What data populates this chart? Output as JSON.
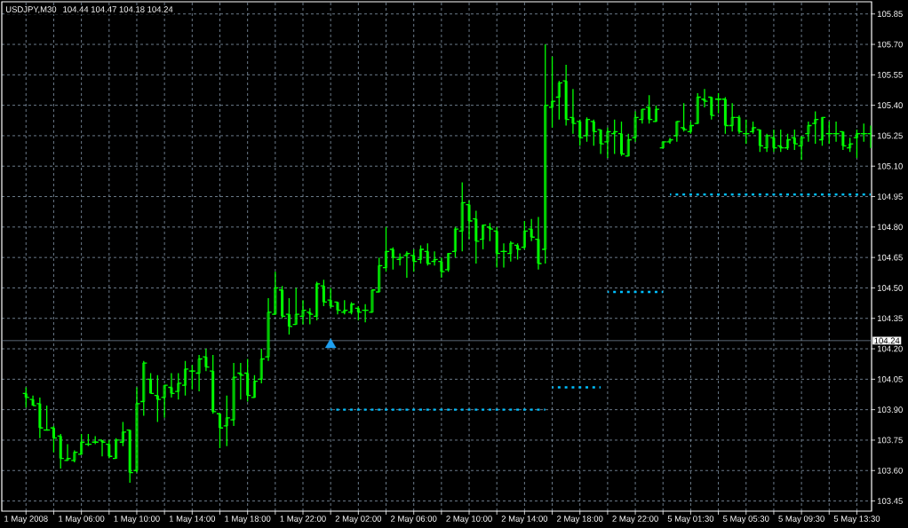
{
  "chart_data": {
    "type": "candlestick",
    "title": "USDJPY,M30",
    "subtitle": "104.44 104.47 104.18 104.24",
    "categories": [
      "1 May 2008",
      null,
      null,
      null,
      null,
      null,
      null,
      null,
      "1 May 06:00",
      null,
      null,
      null,
      null,
      null,
      null,
      null,
      "1 May 10:00",
      null,
      null,
      null,
      null,
      null,
      null,
      null,
      "1 May 14:00",
      null,
      null,
      null,
      null,
      null,
      null,
      null,
      "1 May 18:00",
      null,
      null,
      null,
      null,
      null,
      null,
      null,
      "1 May 22:00",
      null,
      null,
      null,
      null,
      null,
      null,
      null,
      "2 May 02:00",
      null,
      null,
      null,
      null,
      null,
      null,
      null,
      "2 May 06:00",
      null,
      null,
      null,
      null,
      null,
      null,
      null,
      "2 May 10:00",
      null,
      null,
      null,
      null,
      null,
      null,
      null,
      "2 May 14:00",
      null,
      null,
      null,
      null,
      null,
      null,
      null,
      "2 May 18:00",
      null,
      null,
      null,
      null,
      null,
      null,
      null,
      "2 May 22:00",
      null,
      null,
      null,
      null,
      null,
      null,
      null,
      "5 May 01:30",
      null,
      null,
      null,
      null,
      null,
      null,
      null,
      "5 May 05:30",
      null,
      null,
      null,
      null,
      null,
      null,
      null,
      "5 May 09:30",
      null,
      null,
      null,
      null,
      null,
      null,
      null,
      "5 May 13:30",
      null,
      null
    ],
    "ohlc": [
      [
        103.98,
        104.01,
        103.91,
        103.96
      ],
      [
        103.95,
        103.97,
        103.92,
        103.92
      ],
      [
        103.93,
        103.96,
        103.76,
        103.81
      ],
      [
        103.8,
        103.92,
        103.8,
        103.8
      ],
      [
        103.81,
        103.82,
        103.69,
        103.76
      ],
      [
        103.77,
        103.78,
        103.61,
        103.66
      ],
      [
        103.65,
        103.73,
        103.65,
        103.66
      ],
      [
        103.65,
        103.7,
        103.64,
        103.69
      ],
      [
        103.68,
        103.78,
        103.68,
        103.74
      ],
      [
        103.73,
        103.78,
        103.72,
        103.73
      ],
      [
        103.74,
        103.77,
        103.73,
        103.74
      ],
      [
        103.75,
        103.75,
        103.67,
        103.74
      ],
      [
        103.73,
        103.75,
        103.66,
        103.67
      ],
      [
        103.66,
        103.76,
        103.66,
        103.75
      ],
      [
        103.74,
        103.84,
        103.72,
        103.79
      ],
      [
        103.8,
        103.8,
        103.54,
        103.59
      ],
      [
        103.6,
        104.01,
        103.59,
        103.93
      ],
      [
        103.94,
        104.14,
        103.87,
        104.13
      ],
      [
        104.05,
        104.08,
        103.98,
        103.98
      ],
      [
        103.97,
        104.07,
        103.84,
        103.95
      ],
      [
        103.96,
        104.02,
        103.86,
        104.02
      ],
      [
        104.01,
        104.08,
        103.96,
        103.98
      ],
      [
        103.99,
        104.08,
        103.95,
        104.03
      ],
      [
        104.02,
        104.14,
        103.97,
        104.1
      ],
      [
        104.09,
        104.12,
        104.0,
        104.09
      ],
      [
        104.08,
        104.17,
        103.99,
        104.15
      ],
      [
        104.16,
        104.2,
        104.09,
        104.11
      ],
      [
        104.09,
        104.17,
        103.88,
        103.89
      ],
      [
        103.88,
        103.88,
        103.71,
        103.81
      ],
      [
        103.82,
        103.97,
        103.72,
        103.86
      ],
      [
        103.85,
        104.13,
        103.82,
        104.06
      ],
      [
        104.08,
        104.13,
        103.95,
        104.07
      ],
      [
        104.08,
        104.15,
        103.94,
        103.97
      ],
      [
        103.96,
        104.07,
        103.96,
        104.04
      ],
      [
        104.05,
        104.2,
        104.03,
        104.15
      ],
      [
        104.16,
        104.45,
        104.14,
        104.38
      ],
      [
        104.37,
        104.58,
        104.37,
        104.5
      ],
      [
        104.49,
        104.51,
        104.35,
        104.36
      ],
      [
        104.37,
        104.45,
        104.27,
        104.31
      ],
      [
        104.32,
        104.5,
        104.32,
        104.37
      ],
      [
        104.36,
        104.44,
        104.32,
        104.39
      ],
      [
        104.38,
        104.4,
        104.32,
        104.37
      ],
      [
        104.36,
        104.53,
        104.34,
        104.52
      ],
      [
        104.51,
        104.54,
        104.41,
        104.43
      ],
      [
        104.44,
        104.5,
        104.4,
        104.41
      ],
      [
        104.43,
        104.43,
        104.37,
        104.39
      ],
      [
        104.38,
        104.44,
        104.37,
        104.39
      ],
      [
        104.38,
        104.43,
        104.37,
        104.42
      ],
      [
        104.4,
        104.41,
        104.34,
        104.38
      ],
      [
        104.39,
        104.42,
        104.33,
        104.39
      ],
      [
        104.38,
        104.49,
        104.38,
        104.49
      ],
      [
        104.48,
        104.65,
        104.48,
        104.61
      ],
      [
        104.6,
        104.8,
        104.58,
        104.68
      ],
      [
        104.69,
        104.7,
        104.59,
        104.65
      ],
      [
        104.64,
        104.67,
        104.61,
        104.65
      ],
      [
        104.66,
        104.68,
        104.55,
        104.67
      ],
      [
        104.66,
        104.69,
        104.58,
        104.63
      ],
      [
        104.64,
        104.71,
        104.62,
        104.69
      ],
      [
        104.68,
        104.72,
        104.61,
        104.62
      ],
      [
        104.63,
        104.68,
        104.61,
        104.64
      ],
      [
        104.63,
        104.65,
        104.55,
        104.58
      ],
      [
        104.59,
        104.67,
        104.58,
        104.67
      ],
      [
        104.68,
        104.8,
        104.65,
        104.79
      ],
      [
        104.78,
        105.02,
        104.68,
        104.92
      ],
      [
        104.91,
        104.93,
        104.74,
        104.83
      ],
      [
        104.84,
        104.88,
        104.62,
        104.73
      ],
      [
        104.74,
        104.81,
        104.69,
        104.81
      ],
      [
        104.8,
        104.82,
        104.73,
        104.79
      ],
      [
        104.78,
        104.8,
        104.6,
        104.67
      ],
      [
        104.68,
        104.72,
        104.6,
        104.68
      ],
      [
        104.67,
        104.73,
        104.63,
        104.72
      ],
      [
        104.71,
        104.72,
        104.64,
        104.69
      ],
      [
        104.7,
        104.83,
        104.69,
        104.78
      ],
      [
        104.79,
        104.84,
        104.73,
        104.75
      ],
      [
        104.74,
        104.85,
        104.59,
        104.62
      ],
      [
        104.69,
        105.7,
        104.62,
        105.4
      ],
      [
        105.39,
        105.64,
        105.29,
        105.42
      ],
      [
        105.44,
        105.52,
        105.33,
        105.51
      ],
      [
        105.52,
        105.6,
        105.3,
        105.33
      ],
      [
        105.34,
        105.48,
        105.26,
        105.31
      ],
      [
        105.32,
        105.33,
        105.2,
        105.24
      ],
      [
        105.25,
        105.34,
        105.22,
        105.33
      ],
      [
        105.32,
        105.33,
        105.2,
        105.27
      ],
      [
        105.28,
        105.28,
        105.16,
        105.21
      ],
      [
        105.22,
        105.29,
        105.14,
        105.27
      ],
      [
        105.26,
        105.33,
        105.16,
        105.27
      ],
      [
        105.26,
        105.32,
        105.15,
        105.16
      ],
      [
        105.15,
        105.26,
        105.15,
        105.23
      ],
      [
        105.24,
        105.37,
        105.22,
        105.34
      ],
      [
        105.33,
        105.38,
        105.31,
        105.38
      ],
      [
        105.39,
        105.45,
        105.31,
        105.33
      ],
      [
        105.32,
        105.4,
        105.32,
        105.38
      ],
      [
        105.19,
        105.22,
        105.19,
        105.22
      ],
      [
        105.22,
        105.24,
        105.21,
        105.23
      ],
      [
        105.25,
        105.32,
        105.22,
        105.32
      ],
      [
        105.29,
        105.41,
        105.27,
        105.28
      ],
      [
        105.27,
        105.32,
        105.26,
        105.3
      ],
      [
        105.31,
        105.46,
        105.31,
        105.44
      ],
      [
        105.43,
        105.48,
        105.39,
        105.42
      ],
      [
        105.44,
        105.44,
        105.33,
        105.35
      ],
      [
        105.43,
        105.46,
        105.36,
        105.43
      ],
      [
        105.43,
        105.44,
        105.26,
        105.3
      ],
      [
        105.3,
        105.41,
        105.27,
        105.34
      ],
      [
        105.34,
        105.35,
        105.26,
        105.27
      ],
      [
        105.26,
        105.33,
        105.21,
        105.26
      ],
      [
        105.27,
        105.32,
        105.26,
        105.29
      ],
      [
        105.28,
        105.28,
        105.17,
        105.2
      ],
      [
        105.19,
        105.26,
        105.17,
        105.25
      ],
      [
        105.24,
        105.28,
        105.17,
        105.19
      ],
      [
        105.2,
        105.28,
        105.17,
        105.19
      ],
      [
        105.19,
        105.26,
        105.18,
        105.23
      ],
      [
        105.24,
        105.28,
        105.18,
        105.21
      ],
      [
        105.2,
        105.25,
        105.13,
        105.24
      ],
      [
        105.26,
        105.32,
        105.22,
        105.3
      ],
      [
        105.31,
        105.37,
        105.21,
        105.33
      ],
      [
        105.23,
        105.34,
        105.2,
        105.34
      ],
      [
        105.26,
        105.32,
        105.21,
        105.26
      ],
      [
        105.26,
        105.32,
        105.22,
        105.26
      ],
      [
        105.27,
        105.27,
        105.18,
        105.2
      ],
      [
        105.19,
        105.24,
        105.17,
        105.21
      ],
      [
        105.24,
        105.28,
        105.14,
        105.26
      ],
      [
        105.26,
        105.31,
        105.22,
        105.26
      ],
      [
        105.26,
        105.3,
        105.19,
        105.26
      ]
    ],
    "color": "#00ff00",
    "series": [
      {
        "type": "line",
        "color": "#00bfff",
        "line_style": "dotted",
        "values": [
          null,
          null,
          null,
          null,
          null,
          null,
          null,
          null,
          null,
          null,
          null,
          null,
          null,
          null,
          null,
          null,
          null,
          null,
          null,
          null,
          null,
          null,
          null,
          null,
          null,
          null,
          null,
          null,
          null,
          null,
          null,
          null,
          null,
          null,
          null,
          null,
          null,
          null,
          null,
          null,
          null,
          null,
          null,
          null,
          103.9,
          103.9,
          103.9,
          103.9,
          103.9,
          103.9,
          103.9,
          103.9,
          103.9,
          103.9,
          103.9,
          103.9,
          103.9,
          103.9,
          103.9,
          103.9,
          103.9,
          103.9,
          103.9,
          103.9,
          103.9,
          103.9,
          103.9,
          103.9,
          103.9,
          103.9,
          103.9,
          103.9,
          103.9,
          103.9,
          103.9,
          103.9,
          null,
          null,
          null,
          null,
          null,
          null,
          null,
          null,
          null,
          null,
          null,
          null,
          null,
          null,
          null,
          null,
          null,
          null,
          null,
          null,
          null,
          null,
          null,
          null,
          null,
          null,
          null,
          null,
          null,
          null,
          null,
          null,
          null,
          null,
          null,
          null,
          null,
          null,
          null,
          null,
          null,
          null,
          null,
          null,
          null,
          null,
          null
        ]
      },
      {
        "type": "line",
        "color": "#00bfff",
        "line_style": "dotted",
        "values": [
          null,
          null,
          null,
          null,
          null,
          null,
          null,
          null,
          null,
          null,
          null,
          null,
          null,
          null,
          null,
          null,
          null,
          null,
          null,
          null,
          null,
          null,
          null,
          null,
          null,
          null,
          null,
          null,
          null,
          null,
          null,
          null,
          null,
          null,
          null,
          null,
          null,
          null,
          null,
          null,
          null,
          null,
          null,
          null,
          null,
          null,
          null,
          null,
          null,
          null,
          null,
          null,
          null,
          null,
          null,
          null,
          null,
          null,
          null,
          null,
          null,
          null,
          null,
          null,
          null,
          null,
          null,
          null,
          null,
          null,
          null,
          null,
          null,
          null,
          null,
          null,
          104.01,
          104.01,
          104.01,
          104.01,
          104.01,
          104.01,
          104.01,
          104.01,
          null,
          null,
          null,
          null,
          null,
          null,
          null,
          null,
          null,
          null,
          null,
          null,
          null,
          null,
          null,
          null,
          null,
          null,
          null,
          null,
          null,
          null,
          null,
          null,
          null,
          null,
          null,
          null,
          null,
          null,
          null,
          null,
          null,
          null,
          null,
          null,
          null,
          null,
          null
        ]
      },
      {
        "type": "line",
        "color": "#00bfff",
        "line_style": "dotted",
        "values": [
          null,
          null,
          null,
          null,
          null,
          null,
          null,
          null,
          null,
          null,
          null,
          null,
          null,
          null,
          null,
          null,
          null,
          null,
          null,
          null,
          null,
          null,
          null,
          null,
          null,
          null,
          null,
          null,
          null,
          null,
          null,
          null,
          null,
          null,
          null,
          null,
          null,
          null,
          null,
          null,
          null,
          null,
          null,
          null,
          null,
          null,
          null,
          null,
          null,
          null,
          null,
          null,
          null,
          null,
          null,
          null,
          null,
          null,
          null,
          null,
          null,
          null,
          null,
          null,
          null,
          null,
          null,
          null,
          null,
          null,
          null,
          null,
          null,
          null,
          null,
          null,
          null,
          null,
          null,
          null,
          null,
          null,
          null,
          null,
          104.48,
          104.48,
          104.48,
          104.48,
          104.48,
          104.48,
          104.48,
          104.48,
          104.48,
          null,
          null,
          null,
          null,
          null,
          null,
          null,
          null,
          null,
          null,
          null,
          null,
          null,
          null,
          null,
          null,
          null,
          null,
          null,
          null,
          null,
          null,
          null,
          null,
          null,
          null,
          null,
          null,
          null,
          null
        ]
      },
      {
        "type": "line",
        "color": "#00bfff",
        "line_style": "dotted",
        "values": [
          null,
          null,
          null,
          null,
          null,
          null,
          null,
          null,
          null,
          null,
          null,
          null,
          null,
          null,
          null,
          null,
          null,
          null,
          null,
          null,
          null,
          null,
          null,
          null,
          null,
          null,
          null,
          null,
          null,
          null,
          null,
          null,
          null,
          null,
          null,
          null,
          null,
          null,
          null,
          null,
          null,
          null,
          null,
          null,
          null,
          null,
          null,
          null,
          null,
          null,
          null,
          null,
          null,
          null,
          null,
          null,
          null,
          null,
          null,
          null,
          null,
          null,
          null,
          null,
          null,
          null,
          null,
          null,
          null,
          null,
          null,
          null,
          null,
          null,
          null,
          null,
          null,
          null,
          null,
          null,
          null,
          null,
          null,
          null,
          null,
          null,
          null,
          null,
          null,
          null,
          null,
          null,
          null,
          104.96,
          104.96,
          104.96,
          104.96,
          104.96,
          104.96,
          104.96,
          104.96,
          104.96,
          104.96,
          104.96,
          104.96,
          104.96,
          104.96,
          104.96,
          104.96,
          104.96,
          104.96,
          104.96,
          104.96,
          104.96,
          104.96,
          104.96,
          104.96,
          104.96,
          104.96,
          104.96,
          104.96,
          104.96,
          104.96
        ]
      },
      {
        "type": "scatter",
        "color": "#1ea0f0",
        "marker": "triangle",
        "values": [
          null,
          null,
          null,
          null,
          null,
          null,
          null,
          null,
          null,
          null,
          null,
          null,
          null,
          null,
          null,
          null,
          null,
          null,
          null,
          null,
          null,
          null,
          null,
          null,
          null,
          null,
          null,
          null,
          null,
          null,
          null,
          null,
          null,
          null,
          null,
          null,
          null,
          null,
          null,
          null,
          null,
          null,
          null,
          null,
          104.22,
          null,
          null,
          null,
          null,
          null,
          null,
          null,
          null,
          null,
          null,
          null,
          null,
          null,
          null,
          null,
          null,
          null,
          null,
          null,
          null,
          null,
          null,
          null,
          null,
          null,
          null,
          null,
          null,
          null,
          null,
          null,
          null,
          null,
          null,
          null,
          null,
          null,
          null,
          null,
          null,
          null,
          null,
          null,
          null,
          null,
          null,
          null,
          null,
          null,
          null,
          null,
          null,
          null,
          null,
          null,
          null,
          null,
          null,
          null,
          null,
          null,
          null,
          null,
          null,
          null,
          null,
          null,
          null,
          null,
          null,
          null,
          null,
          null,
          null,
          null,
          null,
          null,
          null
        ]
      }
    ],
    "ylim": [
      103.4,
      105.91
    ],
    "yticks": [
      103.45,
      {
        "value": 103.6,
        "label": "103.60"
      },
      103.75,
      {
        "value": 103.9,
        "label": "103.90"
      },
      104.05,
      {
        "value": 104.2,
        "label": "104.20"
      },
      104.35,
      {
        "value": 104.5,
        "label": "104.50"
      },
      104.65,
      {
        "value": 104.8,
        "label": "104.80"
      },
      104.95,
      {
        "value": 105.1,
        "label": "105.10"
      },
      105.25,
      {
        "value": 105.4,
        "label": "105.40"
      },
      105.55,
      {
        "value": 105.7,
        "label": "105.70"
      },
      105.85
    ],
    "grid": true,
    "ref_lines": [
      {
        "axis": "y",
        "value": 104.24,
        "label": "104.24",
        "color": "#778899"
      }
    ]
  }
}
